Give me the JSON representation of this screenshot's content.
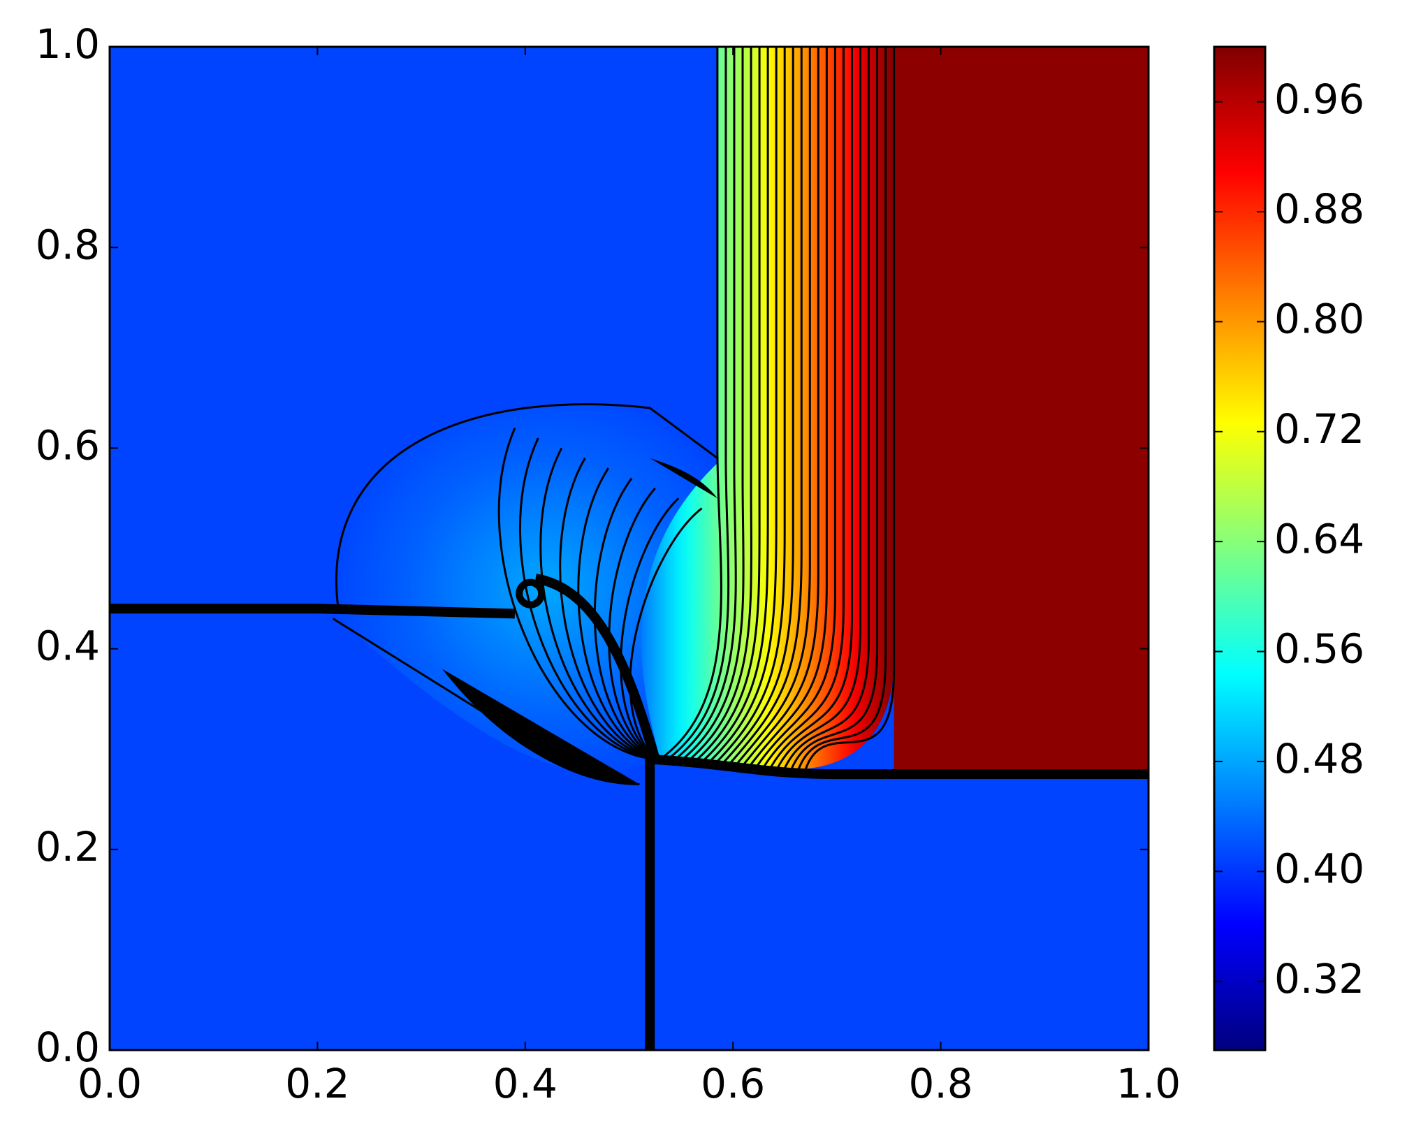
{
  "chart_data": {
    "type": "contour",
    "xlim": [
      0,
      1
    ],
    "ylim": [
      0,
      1
    ],
    "xticks": [
      {
        "value": 0,
        "label": "0.0"
      },
      0.2,
      0.4,
      0.6,
      0.8,
      {
        "value": 1,
        "label": "1.0"
      }
    ],
    "yticks": [
      {
        "value": 0,
        "label": "0.0"
      },
      0.2,
      0.4,
      0.6,
      0.8,
      {
        "value": 1,
        "label": "1.0"
      }
    ],
    "grid": false,
    "colormap": "jet",
    "colorbar": {
      "lim": [
        0.27,
        1.0
      ],
      "ticks": [
        0.32,
        {
          "value": 0.4,
          "label": "0.40"
        },
        0.48,
        0.56,
        0.64,
        0.72,
        {
          "value": 0.8,
          "label": "0.80"
        },
        0.88,
        0.96
      ]
    }
  }
}
